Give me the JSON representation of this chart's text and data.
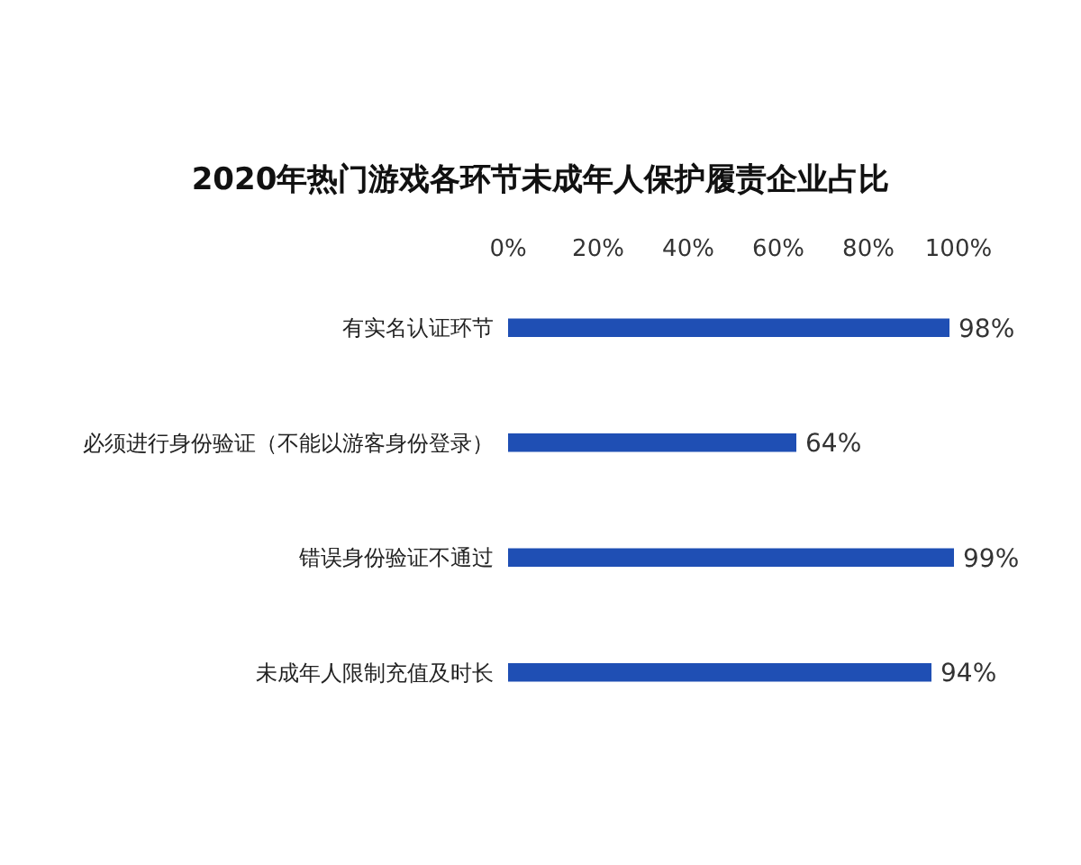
{
  "chart_data": {
    "type": "bar",
    "orientation": "horizontal",
    "title": "2020年热门游戏各环节未成年人保护履责企业占比",
    "categories": [
      "有实名认证环节",
      "必须进行身份验证（不能以游客身份登录）",
      "错误身份验证不通过",
      "未成年人限制充值及时长"
    ],
    "values": [
      98,
      64,
      99,
      94
    ],
    "value_labels": [
      "98%",
      "64%",
      "99%",
      "94%"
    ],
    "color": "#1f4fb4",
    "xlim": [
      0,
      100
    ],
    "xticks": [
      {
        "value": 0,
        "label": "0%"
      },
      {
        "value": 20,
        "label": "20%"
      },
      {
        "value": 40,
        "label": "40%"
      },
      {
        "value": 60,
        "label": "60%"
      },
      {
        "value": 80,
        "label": "80%"
      },
      {
        "value": 100,
        "label": "100%"
      }
    ]
  }
}
